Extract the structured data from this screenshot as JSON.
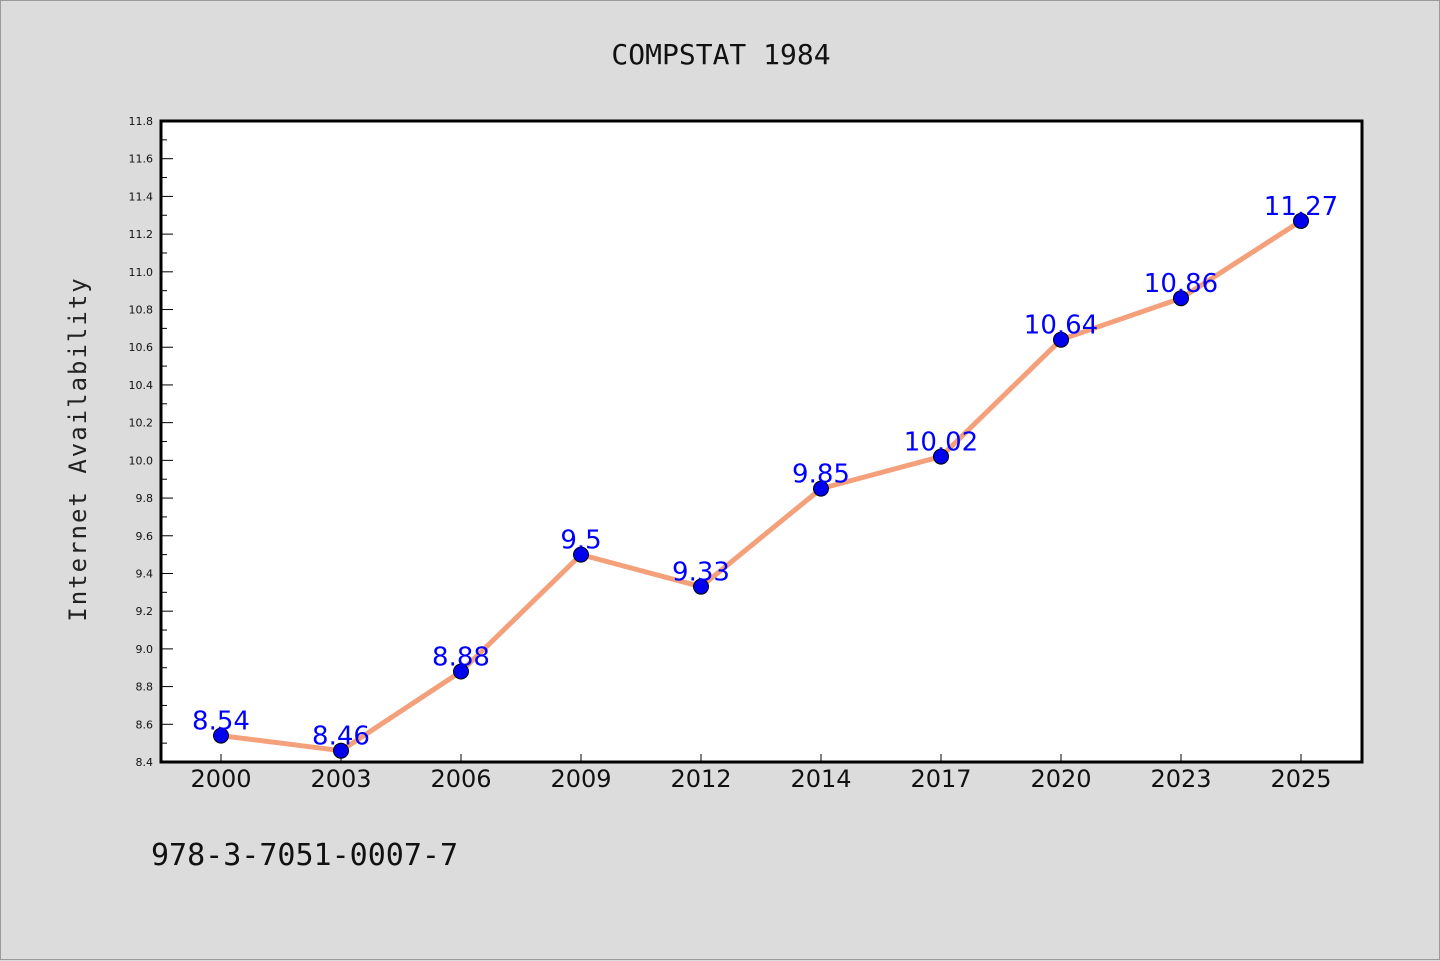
{
  "chart_data": {
    "type": "line",
    "title": "COMPSTAT 1984",
    "xlabel": "",
    "ylabel": "Internet Availability",
    "categories": [
      "2000",
      "2003",
      "2006",
      "2009",
      "2012",
      "2014",
      "2017",
      "2020",
      "2023",
      "2025"
    ],
    "series": [
      {
        "values": [
          8.54,
          8.46,
          8.88,
          9.5,
          9.33,
          9.85,
          10.02,
          10.64,
          10.86,
          11.27
        ],
        "data_labels": [
          "8.54",
          "8.46",
          "8.88",
          "9.5",
          "9.33",
          "9.85",
          "10.02",
          "10.64",
          "10.86",
          "11.27"
        ]
      }
    ],
    "ylim": [
      8.4,
      11.8
    ],
    "yticks": [
      "8.4",
      "8.6",
      "8.8",
      "9.0",
      "9.2",
      "9.4",
      "9.6",
      "9.8",
      "10.0",
      "10.2",
      "10.4",
      "10.6",
      "10.8",
      "11.0",
      "11.2",
      "11.4",
      "11.6",
      "11.8"
    ],
    "grid": false,
    "legend": "none",
    "colors": {
      "line": "#f4a07a",
      "marker": "#0000ee",
      "data_label": "#0000ff",
      "background": "#dcdcdc",
      "plot_background": "#ffffff"
    }
  },
  "footer": {
    "isbn": "978-3-7051-0007-7"
  }
}
